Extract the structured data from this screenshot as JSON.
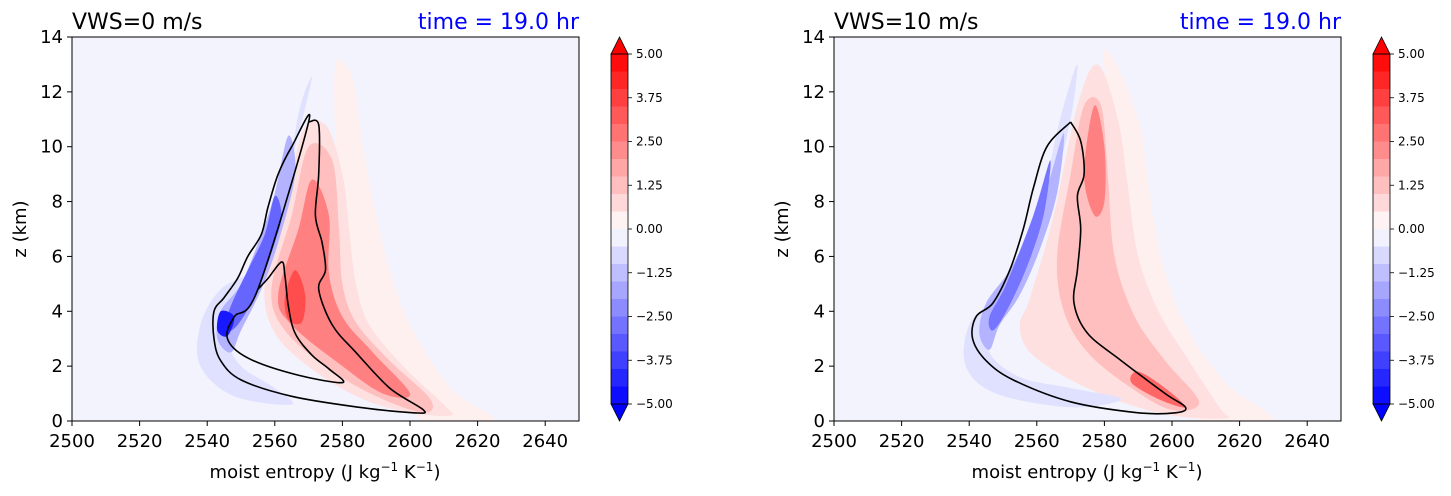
{
  "chart_data": [
    {
      "type": "contourf",
      "title_left": "VWS=0 m/s",
      "title_right": "time = 19.0 hr",
      "title_right_color": "#0000ff",
      "xlabel": "moist entropy (J kg",
      "xlabel_sup1": "−1",
      "xlabel_mid": " K",
      "xlabel_sup2": "−1",
      "xlabel_end": ")",
      "ylabel": "z (km)",
      "xlim": [
        2500,
        2650
      ],
      "ylim": [
        0,
        14
      ],
      "xticks": [
        "2500",
        "2520",
        "2540",
        "2560",
        "2580",
        "2600",
        "2620",
        "2640"
      ],
      "yticks": [
        "0",
        "2",
        "4",
        "6",
        "8",
        "10",
        "12",
        "14"
      ],
      "background_color": "#f3f3fd",
      "colorbar": {
        "ticks": [
          "5.00",
          "3.75",
          "2.50",
          "1.25",
          "0.00",
          "−1.25",
          "−2.50",
          "−3.75",
          "−5.00"
        ],
        "range": [
          -5,
          5
        ],
        "extend": "both",
        "cmap": "bwr"
      },
      "contour_outline": [
        [
          2570,
          10.9
        ],
        [
          2573,
          10.8
        ],
        [
          2573,
          9
        ],
        [
          2572,
          7.5
        ],
        [
          2574,
          6.5
        ],
        [
          2575,
          5.5
        ],
        [
          2573,
          4.8
        ],
        [
          2577,
          3.5
        ],
        [
          2584,
          2.5
        ],
        [
          2594,
          1.2
        ],
        [
          2604,
          0.4
        ],
        [
          2601,
          0.3
        ],
        [
          2585,
          0.5
        ],
        [
          2565,
          0.9
        ],
        [
          2550,
          1.5
        ],
        [
          2544,
          2.2
        ],
        [
          2542,
          3.0
        ],
        [
          2542,
          4.0
        ],
        [
          2545,
          4.5
        ],
        [
          2549,
          5.2
        ],
        [
          2552,
          6.0
        ],
        [
          2556,
          6.8
        ],
        [
          2558,
          7.8
        ],
        [
          2561,
          9.0
        ],
        [
          2565,
          10.0
        ],
        [
          2570,
          10.9
        ],
        [
          2555,
          4.8
        ],
        [
          2548,
          3.8
        ],
        [
          2546,
          3.0
        ],
        [
          2552,
          2.3
        ],
        [
          2566,
          1.7
        ],
        [
          2580,
          1.4
        ],
        [
          2576,
          1.9
        ],
        [
          2571,
          2.4
        ],
        [
          2566,
          3.2
        ],
        [
          2564,
          4.2
        ],
        [
          2563,
          5.3
        ],
        [
          2562,
          5.8
        ],
        [
          2558,
          5.2
        ],
        [
          2555,
          4.8
        ]
      ],
      "positive_regions": [
        {
          "level": 0.6,
          "points": [
            [
              2557,
              5.0
            ],
            [
              2563,
              7.5
            ],
            [
              2568,
              10.5
            ],
            [
              2575,
              10.8
            ],
            [
              2580,
              9.0
            ],
            [
              2582,
              7.0
            ],
            [
              2584,
              5.0
            ],
            [
              2588,
              3.5
            ],
            [
              2598,
              2.0
            ],
            [
              2610,
              0.6
            ],
            [
              2612,
              0.2
            ],
            [
              2600,
              0.3
            ],
            [
              2586,
              0.8
            ],
            [
              2572,
              1.8
            ],
            [
              2560,
              3.2
            ]
          ]
        },
        {
          "level": 1.25,
          "points": [
            [
              2559,
              4.8
            ],
            [
              2565,
              7.5
            ],
            [
              2570,
              10.0
            ],
            [
              2577,
              9.5
            ],
            [
              2579,
              7.0
            ],
            [
              2580,
              5.0
            ],
            [
              2584,
              3.6
            ],
            [
              2594,
              2.2
            ],
            [
              2606,
              0.8
            ],
            [
              2604,
              0.3
            ],
            [
              2590,
              0.9
            ],
            [
              2576,
              1.9
            ],
            [
              2563,
              3.3
            ]
          ]
        },
        {
          "level": 2.5,
          "points": [
            [
              2561,
              4.6
            ],
            [
              2567,
              7.0
            ],
            [
              2571,
              8.8
            ],
            [
              2576,
              7.5
            ],
            [
              2576,
              5.4
            ],
            [
              2580,
              3.8
            ],
            [
              2589,
              2.5
            ],
            [
              2600,
              1.0
            ],
            [
              2592,
              1.0
            ],
            [
              2580,
              2.0
            ],
            [
              2565,
              3.5
            ]
          ]
        },
        {
          "level": 3.5,
          "points": [
            [
              2563,
              4.5
            ],
            [
              2566,
              5.5
            ],
            [
              2569,
              4.6
            ],
            [
              2568,
              3.6
            ],
            [
              2564,
              3.7
            ]
          ]
        },
        {
          "level": 0.3,
          "points": [
            [
              2578,
              13.0
            ],
            [
              2583,
              12.5
            ],
            [
              2586,
              10.0
            ],
            [
              2590,
              7.5
            ],
            [
              2594,
              5.5
            ],
            [
              2600,
              3.5
            ],
            [
              2612,
              1.2
            ],
            [
              2625,
              0.0
            ],
            [
              2604,
              0.0
            ],
            [
              2596,
              1.5
            ],
            [
              2585,
              3.5
            ],
            [
              2580,
              6.5
            ],
            [
              2578,
              10.0
            ]
          ]
        }
      ],
      "negative_regions": [
        {
          "level": -0.6,
          "points": [
            [
              2567,
              11.2
            ],
            [
              2571,
              12.5
            ],
            [
              2566,
              10.0
            ],
            [
              2561,
              8.0
            ],
            [
              2558,
              6.5
            ],
            [
              2554,
              5.5
            ],
            [
              2544,
              4.8
            ],
            [
              2538,
              3.5
            ],
            [
              2538,
              2.0
            ],
            [
              2548,
              0.9
            ],
            [
              2565,
              0.6
            ],
            [
              2560,
              1.2
            ],
            [
              2550,
              2.0
            ],
            [
              2546,
              3.0
            ],
            [
              2549,
              3.9
            ],
            [
              2556,
              5.3
            ],
            [
              2562,
              7.5
            ]
          ]
        },
        {
          "level": -1.5,
          "points": [
            [
              2564,
              10.4
            ],
            [
              2560,
              8.3
            ],
            [
              2556,
              6.8
            ],
            [
              2550,
              5.0
            ],
            [
              2544,
              4.0
            ],
            [
              2543,
              3.0
            ],
            [
              2547,
              2.5
            ],
            [
              2550,
              3.3
            ],
            [
              2556,
              4.8
            ],
            [
              2561,
              6.5
            ],
            [
              2566,
              9.0
            ]
          ]
        },
        {
          "level": -3.0,
          "points": [
            [
              2560,
              8.2
            ],
            [
              2557,
              6.8
            ],
            [
              2552,
              5.5
            ],
            [
              2547,
              4.2
            ],
            [
              2545,
              3.3
            ],
            [
              2549,
              3.5
            ],
            [
              2555,
              4.8
            ],
            [
              2560,
              6.5
            ],
            [
              2562,
              7.5
            ]
          ]
        },
        {
          "level": -4.5,
          "points": [
            [
              2544,
              4.0
            ],
            [
              2543,
              3.3
            ],
            [
              2546,
              3.1
            ],
            [
              2548,
              3.8
            ]
          ]
        }
      ]
    },
    {
      "type": "contourf",
      "title_left": "VWS=10 m/s",
      "title_right": "time = 19.0 hr",
      "title_right_color": "#0000ff",
      "xlabel": "moist entropy (J kg",
      "xlabel_sup1": "−1",
      "xlabel_mid": " K",
      "xlabel_sup2": "−1",
      "xlabel_end": ")",
      "ylabel": "z (km)",
      "xlim": [
        2500,
        2650
      ],
      "ylim": [
        0,
        14
      ],
      "xticks": [
        "2500",
        "2520",
        "2540",
        "2560",
        "2580",
        "2600",
        "2620",
        "2640"
      ],
      "yticks": [
        "0",
        "2",
        "4",
        "6",
        "8",
        "10",
        "12",
        "14"
      ],
      "background_color": "#f3f3fd",
      "colorbar": {
        "ticks": [
          "5.00",
          "3.75",
          "2.50",
          "1.25",
          "0.00",
          "−1.25",
          "−2.50",
          "−3.75",
          "−5.00"
        ],
        "range": [
          -5,
          5
        ],
        "extend": "both",
        "cmap": "bwr"
      },
      "contour_outline": [
        [
          2570,
          10.9
        ],
        [
          2573,
          10.2
        ],
        [
          2574,
          9.0
        ],
        [
          2572,
          8.2
        ],
        [
          2573,
          7.0
        ],
        [
          2572,
          5.5
        ],
        [
          2571,
          4.3
        ],
        [
          2575,
          3.2
        ],
        [
          2585,
          2.2
        ],
        [
          2598,
          1.0
        ],
        [
          2604,
          0.5
        ],
        [
          2601,
          0.3
        ],
        [
          2590,
          0.3
        ],
        [
          2570,
          0.7
        ],
        [
          2553,
          1.5
        ],
        [
          2545,
          2.2
        ],
        [
          2541,
          3.0
        ],
        [
          2542,
          3.8
        ],
        [
          2547,
          4.3
        ],
        [
          2552,
          5.5
        ],
        [
          2556,
          7.0
        ],
        [
          2559,
          8.5
        ],
        [
          2563,
          10.0
        ],
        [
          2570,
          10.9
        ]
      ],
      "positive_regions": [
        {
          "level": 0.6,
          "points": [
            [
              2558,
              4.5
            ],
            [
              2565,
              7.5
            ],
            [
              2572,
              11.5
            ],
            [
              2578,
              13.0
            ],
            [
              2584,
              11.0
            ],
            [
              2587,
              8.5
            ],
            [
              2590,
              6.0
            ],
            [
              2596,
              4.0
            ],
            [
              2605,
              2.2
            ],
            [
              2614,
              0.5
            ],
            [
              2616,
              0.1
            ],
            [
              2600,
              0.2
            ],
            [
              2585,
              0.7
            ],
            [
              2570,
              1.5
            ],
            [
              2558,
              2.5
            ],
            [
              2555,
              3.5
            ]
          ]
        },
        {
          "level": 1.25,
          "points": [
            [
              2566,
              6.0
            ],
            [
              2570,
              9.0
            ],
            [
              2574,
              11.5
            ],
            [
              2579,
              11.5
            ],
            [
              2581,
              9.0
            ],
            [
              2583,
              6.0
            ],
            [
              2589,
              3.8
            ],
            [
              2598,
              2.2
            ],
            [
              2608,
              0.7
            ],
            [
              2600,
              0.4
            ],
            [
              2588,
              1.2
            ],
            [
              2575,
              2.5
            ],
            [
              2568,
              4.0
            ]
          ]
        },
        {
          "level": 2.5,
          "points": [
            [
              2574,
              9.0
            ],
            [
              2577,
              11.5
            ],
            [
              2580,
              10.0
            ],
            [
              2580,
              8.0
            ],
            [
              2577,
              7.5
            ]
          ]
        },
        {
          "level": 3.0,
          "points": [
            [
              2590,
              1.8
            ],
            [
              2598,
              1.2
            ],
            [
              2604,
              0.5
            ],
            [
              2596,
              0.8
            ],
            [
              2588,
              1.4
            ]
          ]
        },
        {
          "level": 0.3,
          "points": [
            [
              2580,
              13.5
            ],
            [
              2590,
              11.0
            ],
            [
              2595,
              7.0
            ],
            [
              2602,
              4.0
            ],
            [
              2615,
              1.5
            ],
            [
              2630,
              0.0
            ],
            [
              2608,
              0.0
            ],
            [
              2598,
              2.0
            ],
            [
              2588,
              4.5
            ],
            [
              2584,
              9.0
            ]
          ]
        }
      ],
      "negative_regions": [
        {
          "level": -0.6,
          "points": [
            [
              2568,
              11.5
            ],
            [
              2572,
              13.0
            ],
            [
              2570,
              11.0
            ],
            [
              2566,
              9.0
            ],
            [
              2561,
              7.0
            ],
            [
              2556,
              5.5
            ],
            [
              2548,
              4.5
            ],
            [
              2540,
              3.5
            ],
            [
              2539,
              2.0
            ],
            [
              2548,
              1.0
            ],
            [
              2570,
              0.5
            ],
            [
              2585,
              0.8
            ],
            [
              2570,
              1.2
            ],
            [
              2555,
              1.6
            ],
            [
              2546,
              2.5
            ],
            [
              2547,
              3.6
            ],
            [
              2553,
              4.3
            ],
            [
              2558,
              6.0
            ],
            [
              2562,
              8.0
            ],
            [
              2565,
              10.0
            ]
          ]
        },
        {
          "level": -1.5,
          "points": [
            [
              2568,
              10.5
            ],
            [
              2563,
              8.5
            ],
            [
              2558,
              7.0
            ],
            [
              2552,
              5.5
            ],
            [
              2545,
              4.3
            ],
            [
              2543,
              3.2
            ],
            [
              2546,
              2.6
            ],
            [
              2549,
              3.5
            ],
            [
              2555,
              4.6
            ],
            [
              2561,
              6.3
            ],
            [
              2566,
              8.3
            ]
          ]
        },
        {
          "level": -2.7,
          "points": [
            [
              2564,
              9.5
            ],
            [
              2559,
              7.5
            ],
            [
              2551,
              5.0
            ],
            [
              2546,
              3.8
            ],
            [
              2547,
              3.3
            ],
            [
              2551,
              4.0
            ],
            [
              2557,
              5.6
            ],
            [
              2562,
              7.5
            ]
          ]
        }
      ]
    }
  ]
}
